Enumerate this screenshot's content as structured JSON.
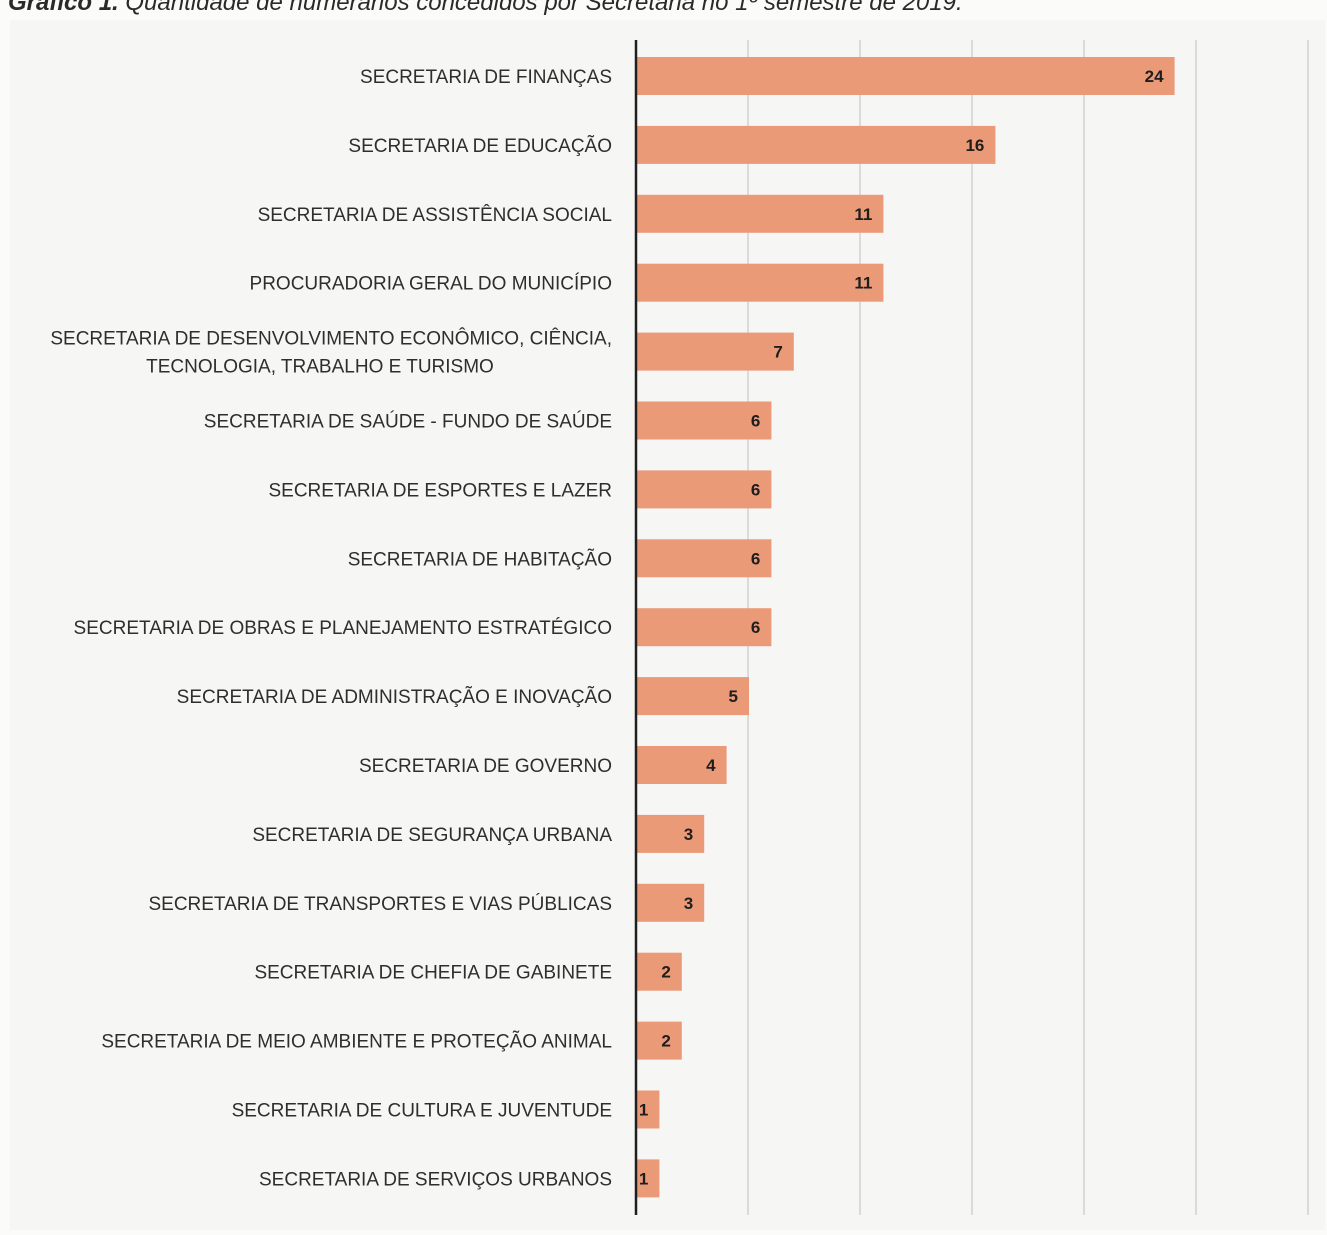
{
  "caption": {
    "bold": "Gráfico 1.",
    "text": " Quantidade de numerários concedidos por Secretaria no 1º semestre de 2019."
  },
  "colors": {
    "bar": "#eb9a78",
    "axis": "#1f1f1f",
    "grid": "#c9c9c9"
  },
  "chart_data": {
    "type": "bar",
    "orientation": "horizontal",
    "categories": [
      "SECRETARIA DE FINANÇAS",
      "SECRETARIA DE EDUCAÇÃO",
      "SECRETARIA DE ASSISTÊNCIA SOCIAL",
      "PROCURADORIA GERAL DO MUNICÍPIO",
      "SECRETARIA DE DESENVOLVIMENTO ECONÔMICO, CIÊNCIA, TECNOLOGIA, TRABALHO E TURISMO",
      "SECRETARIA DE SAÚDE - FUNDO DE SAÚDE",
      "SECRETARIA DE ESPORTES E LAZER",
      "SECRETARIA DE HABITAÇÃO",
      "SECRETARIA DE OBRAS E PLANEJAMENTO ESTRATÉGICO",
      "SECRETARIA DE ADMINISTRAÇÃO E INOVAÇÃO",
      "SECRETARIA DE GOVERNO",
      "SECRETARIA DE SEGURANÇA URBANA",
      "SECRETARIA DE TRANSPORTES E VIAS PÚBLICAS",
      "SECRETARIA DE CHEFIA DE GABINETE",
      "SECRETARIA DE MEIO AMBIENTE E PROTEÇÃO ANIMAL",
      "SECRETARIA DE CULTURA E JUVENTUDE",
      "SECRETARIA DE SERVIÇOS URBANOS"
    ],
    "values": [
      24,
      16,
      11,
      11,
      7,
      6,
      6,
      6,
      6,
      5,
      4,
      3,
      3,
      2,
      2,
      1,
      1
    ],
    "data_labels": true,
    "xlim": [
      0,
      30
    ],
    "grid": true,
    "legend": "none"
  }
}
